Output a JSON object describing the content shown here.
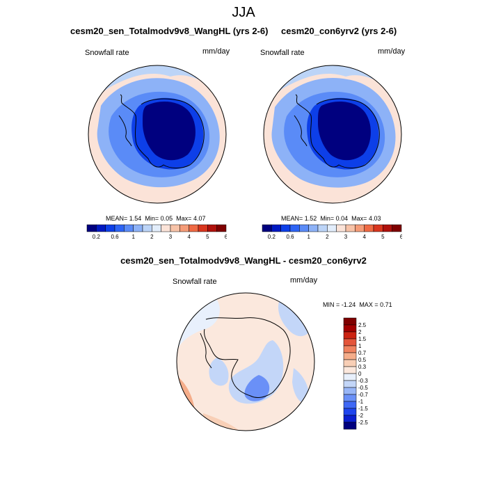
{
  "main_title": "JJA",
  "panels": [
    {
      "title": "cesm20_sen_Totalmodv9v8_WangHL (yrs 2-6)",
      "variable": "Snowfall rate",
      "units": "mm/day",
      "stats": {
        "mean": "1.54",
        "min": "0.05",
        "max": "4.07"
      }
    },
    {
      "title": "cesm20_con6yrv2 (yrs 2-6)",
      "variable": "Snowfall rate",
      "units": "mm/day",
      "stats": {
        "mean": "1.52",
        "min": "0.04",
        "max": "4.03"
      }
    },
    {
      "title": "cesm20_sen_Totalmodv9v8_WangHL - cesm20_con6yrv2",
      "variable": "Snowfall rate",
      "units": "mm/day",
      "stats": {
        "min": "-1.24",
        "max": "0.71"
      }
    }
  ],
  "labels": {
    "mean": "MEAN=",
    "min": "Min=",
    "max": "Max=",
    "min_upper": "MIN =",
    "max_upper": "MAX ="
  },
  "colorbar_abs": {
    "colors": [
      "#00007f",
      "#0019c2",
      "#0d3fe8",
      "#2d64f5",
      "#5a8bf7",
      "#8db2f7",
      "#bcd4f7",
      "#e2edfb",
      "#fbe3d8",
      "#f7c3a8",
      "#f59c78",
      "#ef6a44",
      "#d9361e",
      "#b0110c",
      "#7f0000"
    ],
    "tick_labels": [
      "0.2",
      "0.6",
      "1",
      "2",
      "3",
      "4",
      "5",
      "6"
    ]
  },
  "colorbar_diff": {
    "colors": [
      "#00007f",
      "#0b1fd0",
      "#1f45ee",
      "#3f68f5",
      "#6a90f7",
      "#98b6f7",
      "#c3d6f8",
      "#e8f0fc",
      "#fbe8dd",
      "#f8cfb6",
      "#f5ad8a",
      "#f0825f",
      "#e4553a",
      "#cc2412",
      "#a20000",
      "#7f0000"
    ],
    "tick_labels": [
      "2.5",
      "2",
      "1.5",
      "1",
      "0.7",
      "0.5",
      "0.3",
      "0",
      "-0.3",
      "-0.5",
      "-0.7",
      "-1",
      "-1.5",
      "-2",
      "-2.5"
    ]
  }
}
